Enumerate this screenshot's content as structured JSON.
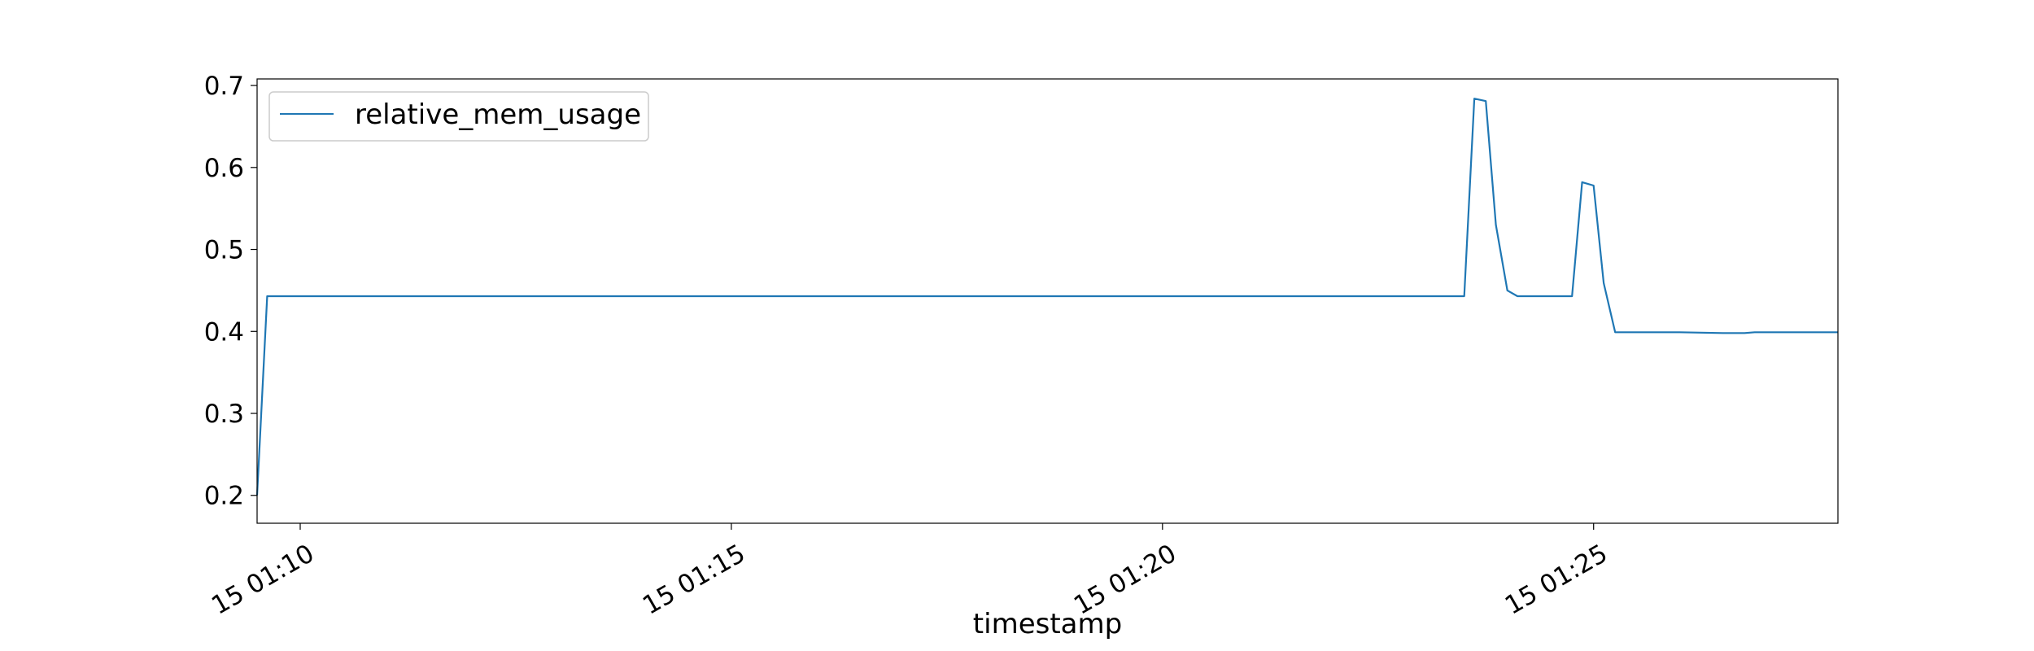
{
  "chart_data": {
    "type": "line",
    "title": "",
    "xlabel": "timestamp",
    "ylabel": "",
    "xlim": [
      "01:09:30",
      "01:27:50"
    ],
    "ylim": [
      0.166,
      0.708
    ],
    "x_ticks": [
      {
        "value": "01:10:00",
        "label": "15 01:10"
      },
      {
        "value": "01:15:00",
        "label": "15 01:15"
      },
      {
        "value": "01:20:00",
        "label": "15 01:20"
      },
      {
        "value": "01:25:00",
        "label": "15 01:25"
      }
    ],
    "y_ticks": [
      0.2,
      0.3,
      0.4,
      0.5,
      0.6,
      0.7
    ],
    "y_tick_labels": [
      "0.2",
      "0.3",
      "0.4",
      "0.5",
      "0.6",
      "0.7"
    ],
    "grid": false,
    "legend": {
      "position": "top-left"
    },
    "series": [
      {
        "name": "relative_mem_usage",
        "color": "#1f77b4",
        "points": [
          [
            "01:09:30",
            0.2
          ],
          [
            "01:09:37",
            0.443
          ],
          [
            "01:09:45",
            0.443
          ],
          [
            "01:10:00",
            0.443
          ],
          [
            "01:12:00",
            0.443
          ],
          [
            "01:15:00",
            0.443
          ],
          [
            "01:18:00",
            0.443
          ],
          [
            "01:20:00",
            0.443
          ],
          [
            "01:22:00",
            0.443
          ],
          [
            "01:23:30",
            0.443
          ],
          [
            "01:23:37",
            0.684
          ],
          [
            "01:23:45",
            0.681
          ],
          [
            "01:23:52",
            0.53
          ],
          [
            "01:24:00",
            0.45
          ],
          [
            "01:24:07",
            0.443
          ],
          [
            "01:24:45",
            0.443
          ],
          [
            "01:24:52",
            0.582
          ],
          [
            "01:25:00",
            0.578
          ],
          [
            "01:25:07",
            0.459
          ],
          [
            "01:25:15",
            0.399
          ],
          [
            "01:25:30",
            0.399
          ],
          [
            "01:26:00",
            0.399
          ],
          [
            "01:26:30",
            0.398
          ],
          [
            "01:26:45",
            0.398
          ],
          [
            "01:26:52",
            0.399
          ],
          [
            "01:27:00",
            0.399
          ],
          [
            "01:27:50",
            0.399
          ]
        ]
      }
    ]
  }
}
